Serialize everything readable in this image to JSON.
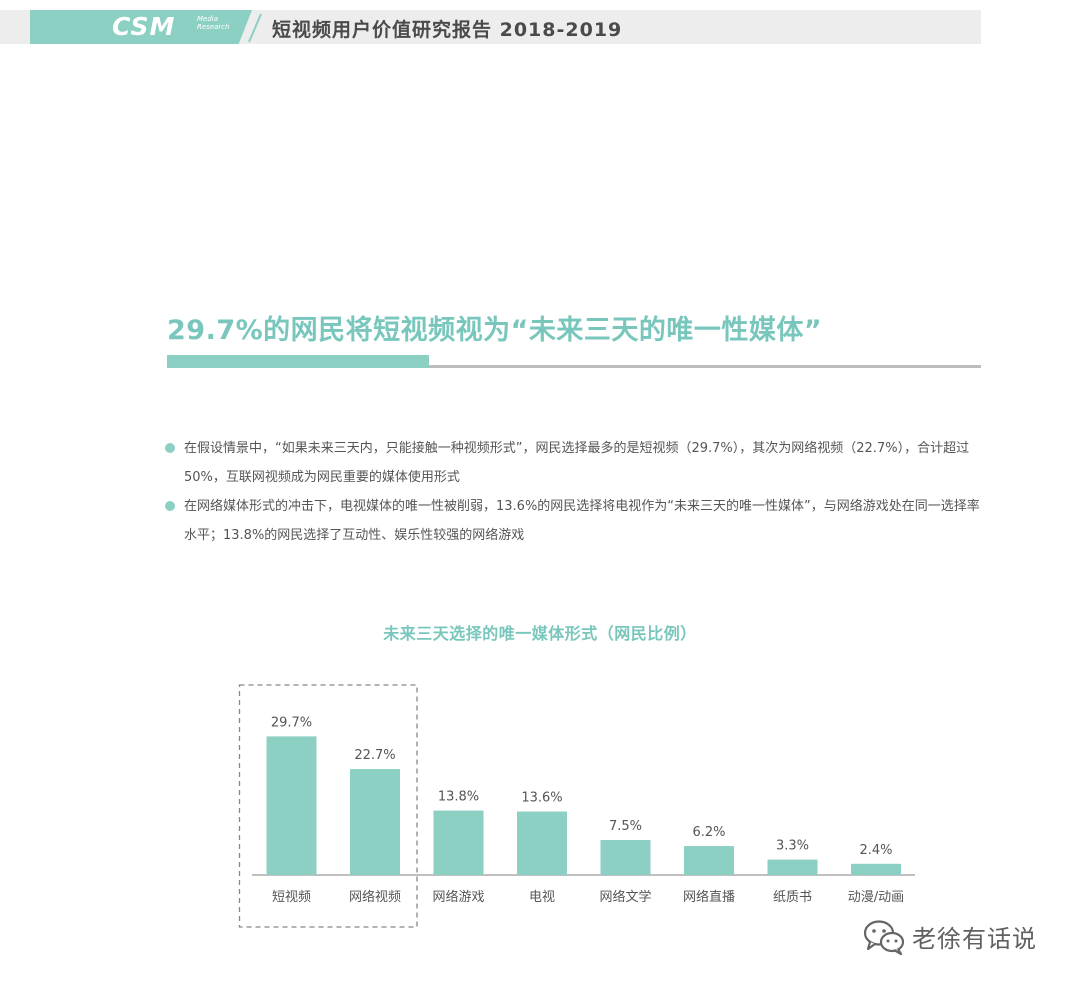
{
  "header": {
    "logo": "CSM",
    "logo_sub": "Media Research",
    "title": "短视频用户价值研究报告 2018-2019"
  },
  "headline": "29.7%的网民将短视频视为“未来三天的唯一性媒体”",
  "bullets": [
    "在假设情景中，“如果未来三天内，只能接触一种视频形式”，网民选择最多的是短视频（29.7%），其次为网络视频（22.7%），合计超过50%，互联网视频成为网民重要的媒体使用形式",
    "在网络媒体形式的冲击下，电视媒体的唯一性被削弱，13.6%的网民选择将电视作为“未来三天的唯一性媒体”，与网络游戏处在同一选择率水平；13.8%的网民选择了互动性、娱乐性较强的网络游戏"
  ],
  "chart_data": {
    "type": "bar",
    "title": "未来三天选择的唯一媒体形式（网民比例）",
    "categories": [
      "短视频",
      "网络视频",
      "网络游戏",
      "电视",
      "网络文学",
      "网络直播",
      "纸质书",
      "动漫/动画"
    ],
    "values": [
      29.7,
      22.7,
      13.8,
      13.6,
      7.5,
      6.2,
      3.3,
      2.4
    ],
    "value_labels": [
      "29.7%",
      "22.7%",
      "13.8%",
      "13.6%",
      "7.5%",
      "6.2%",
      "3.3%",
      "2.4%"
    ],
    "highlighted": [
      "短视频",
      "网络视频"
    ],
    "ylim": [
      0,
      30
    ],
    "bar_color": "#8ccfc3"
  },
  "watermark": {
    "text": "老徐有话说",
    "icon": "wechat-icon"
  },
  "colors": {
    "accent": "#8ccfc3",
    "headline": "#79c7bc"
  }
}
